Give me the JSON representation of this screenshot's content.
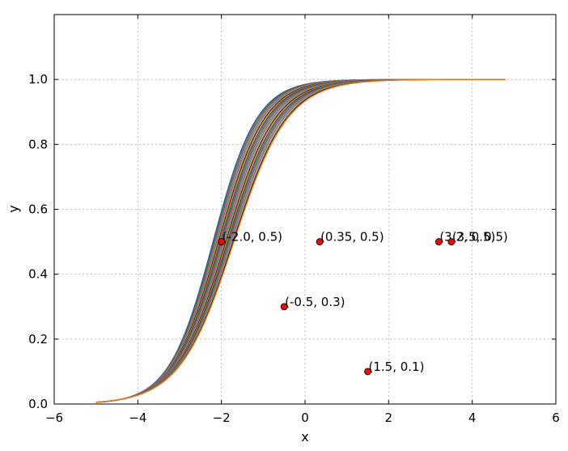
{
  "chart_data": {
    "type": "line",
    "title": "",
    "xlabel": "x",
    "ylabel": "y",
    "xlim": [
      -6,
      6
    ],
    "ylim": [
      0,
      1.2
    ],
    "xticks": [
      -6,
      -4,
      -2,
      0,
      2,
      4,
      6
    ],
    "yticks": [
      0.0,
      0.2,
      0.4,
      0.6,
      0.8,
      1.0
    ],
    "xtick_labels": [
      "−6",
      "−4",
      "−2",
      "0",
      "2",
      "4",
      "6"
    ],
    "ytick_labels": [
      "0.0",
      "0.2",
      "0.4",
      "0.6",
      "0.8",
      "1.0"
    ],
    "grid": true,
    "curves": {
      "function": "sigmoid",
      "x_range": [
        -5,
        4.8
      ],
      "count": 24,
      "center_range": [
        -2.2,
        -1.7
      ],
      "slope_range": [
        1.55,
        1.9
      ],
      "colors": [
        "#1f3fb8",
        "#2e8b2e",
        "#d03030",
        "#20b0b0",
        "#b040b0",
        "#b0b020",
        "#202020",
        "#ff7f0e"
      ]
    },
    "points": [
      {
        "x": -2.0,
        "y": 0.5,
        "label": "(-2.0, 0.5)"
      },
      {
        "x": 0.35,
        "y": 0.5,
        "label": "(0.35, 0.5)"
      },
      {
        "x": 3.2,
        "y": 0.5,
        "label": "(3.2, 0.5)"
      },
      {
        "x": 3.5,
        "y": 0.5,
        "label": "(3.5, 0.5)"
      },
      {
        "x": -0.5,
        "y": 0.3,
        "label": "(-0.5, 0.3)"
      },
      {
        "x": 1.5,
        "y": 0.1,
        "label": "(1.5, 0.1)"
      }
    ],
    "point_color": "#ff0000"
  }
}
